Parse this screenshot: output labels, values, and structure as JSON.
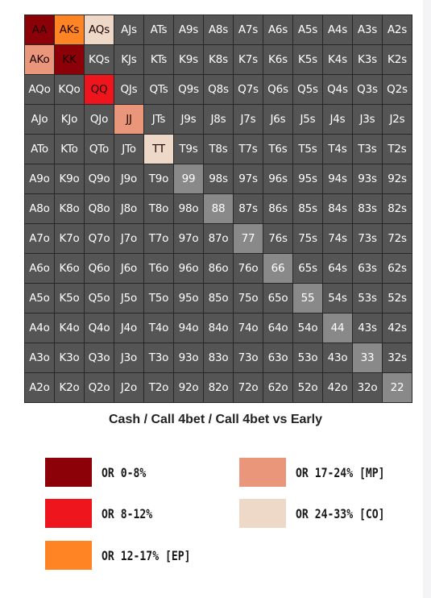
{
  "ranks": [
    "A",
    "K",
    "Q",
    "J",
    "T",
    "9",
    "8",
    "7",
    "6",
    "5",
    "4",
    "3",
    "2"
  ],
  "caption": "Cash / Call 4bet / Call 4bet vs Early",
  "highlight": {
    "AA": 0,
    "AKs": 2,
    "AQs": 4,
    "AKo": 3,
    "KK": 0,
    "QQ": 1,
    "JJ": 3,
    "TT": 4
  },
  "legend": [
    {
      "label": "OR 0-8%",
      "color": "#8c0008"
    },
    {
      "label": "OR 8-12%",
      "color": "#ee161c"
    },
    {
      "label": "OR 12-17% [EP]",
      "color": "#ff8423"
    },
    {
      "label": "OR 17-24% [MP]",
      "color": "#e9967a"
    },
    {
      "label": "OR 24-33% [CO]",
      "color": "#eed9c9"
    }
  ],
  "colors": {
    "unselected": "#555555",
    "unselected_pair": "#898989",
    "grid_line": "#262626"
  }
}
